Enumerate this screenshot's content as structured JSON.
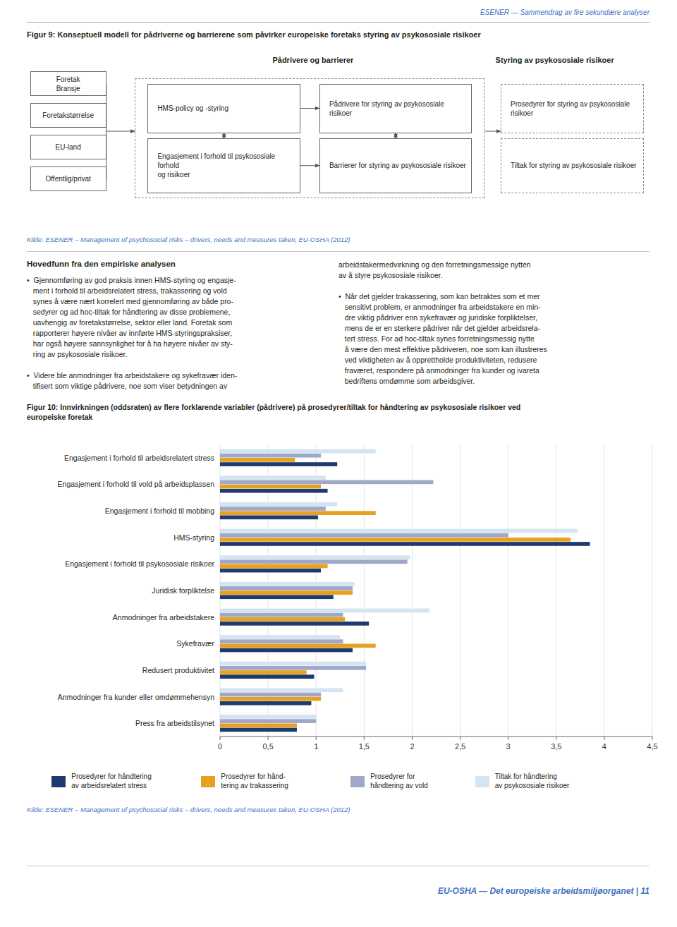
{
  "chart_data": {
    "type": "bar",
    "orientation": "horizontal",
    "title": "Figur 10: Innvirkningen (oddsraten) av flere forklarende variabler (pådrivere) på prosedyrer/tiltak for håndtering av psykososiale risikoer ved\neuropeiske foretak",
    "categories": [
      "Engasjement i forhold til arbeidsrelatert stress",
      "Engasjement i forhold til vold på arbeidsplassen",
      "Engasjement i forhold til mobbing",
      "HMS-styring",
      "Engasjement i forhold til psykososiale risikoer",
      "Juridisk forpliktelse",
      "Anmodninger fra arbeidstakere",
      "Sykefravær",
      "Redusert produktivitet",
      "Anmodninger fra kunder eller omdømmehensyn",
      "Press fra arbeidstilsynet"
    ],
    "series": [
      {
        "name": "Prosedyrer for håndtering\nav arbeidsrelatert stress",
        "color": "#1F3B6E",
        "values": [
          1.22,
          1.12,
          1.02,
          3.85,
          1.05,
          1.18,
          1.55,
          1.38,
          0.98,
          0.95,
          0.8
        ]
      },
      {
        "name": "Prosedyrer for hånd-\ntering av trakassering",
        "color": "#E8A020",
        "values": [
          0.78,
          1.05,
          1.62,
          3.65,
          1.12,
          1.38,
          1.3,
          1.62,
          0.9,
          1.05,
          0.8
        ]
      },
      {
        "name": "Prosedyrer for\nhåndtering av vold",
        "color": "#9FA8C8",
        "values": [
          1.05,
          2.22,
          1.1,
          3.0,
          1.95,
          1.38,
          1.28,
          1.28,
          1.52,
          1.05,
          1.0
        ]
      },
      {
        "name": "Tiltak for håndtering\nav psykososiale risikoer",
        "color": "#D4E4F0",
        "values": [
          1.62,
          1.1,
          1.22,
          3.72,
          1.98,
          1.4,
          2.18,
          1.25,
          1.52,
          1.28,
          1.0
        ]
      }
    ],
    "xlim": [
      0,
      4.5
    ],
    "xticks": [
      0,
      {
        "value": 0.5,
        "label": "0,5"
      },
      1,
      {
        "value": 1.5,
        "label": "1,5"
      },
      2,
      {
        "value": 2.5,
        "label": "2,5"
      },
      3,
      {
        "value": 3.5,
        "label": "3,5"
      },
      4,
      {
        "value": 4.5,
        "label": "4,5"
      }
    ],
    "grid": true,
    "legend": "bottom",
    "tick_labels": "x",
    "annotations": [
      "ESENER — Sammendrag av fire sekundære analyser",
      "Figur 9: Konseptuell modell for pådriverne og barrierene som påvirker europeiske foretaks styring av psykososiale risikoer",
      "Pådrivere og barrierer",
      "Styring av psykososiale risikoer",
      "Foretak\nBransje",
      "Foretakstørrelse",
      "EU-land",
      "Offentlig/privat",
      "HMS-policy og -styring",
      "Engasjement i forhold til psykososiale forhold\nog risikoer",
      "Pådrivere for styring av psykososiale risikoer",
      "Barrierer for styring av psykososiale risikoer",
      "Prosedyrer for styring av psykososiale risikoer",
      "Tiltak for styring av psykososiale risikoer",
      "Kilde: ESENER – Management of psychosocial risks – drivers, needs and measures taken, EU-OSHA (2012)",
      "Hovedfunn fra den empiriske analysen",
      "•  Gjennomføring av god praksis innen HMS-styring og engasje-\n   ment i forhold til arbeidsrelatert stress, trakassering og vold\n   synes å være nært korrelert med gjennomføring av både pro-\n   sedyrer og ad hoc-tiltak for håndtering av disse problemene,\n   uavhengig av foretakstørrelse, sektor eller land. Foretak som\n   rapporterer høyere nivåer av innførte HMS-styringspraksiser,\n   har også høyere sannsynlighet for å ha høyere nivåer av sty-\n   ring av psykososiale risikoer.\n\n•  Videre ble anmodninger fra arbeidstakere og sykefravær iden-\n   tifisert som viktige pådrivere, noe som viser betydningen av",
      "arbeidstakermedvirkning og den forretningsmessige nytten\nav å styre psykososiale risikoer.\n\n•  Når det gjelder trakassering, som kan betraktes som et mer\n   sensitivt problem, er anmodninger fra arbeidstakere en min-\n   dre viktig pådriver enn sykefravær og juridiske forpliktelser,\n   mens de er en sterkere pådriver når det gjelder arbeidsrela-\n   tert stress. For ad hoc-tiltak synes forretningsmessig nytte\n   å være den mest effektive pådriveren, noe som kan illustreres\n   ved viktigheten av å opprettholde produktiviteten, redusere\n   fraværet, respondere på anmodninger fra kunder og ivareta\n   bedriftens omdømme som arbeidsgiver.",
      "Kilde: ESENER – Management of psychosocial risks – drivers, needs and measures taken, EU-OSHA (2012)",
      "EU-OSHA — Det europeiske arbeidsmiljøorganet | 11"
    ]
  }
}
